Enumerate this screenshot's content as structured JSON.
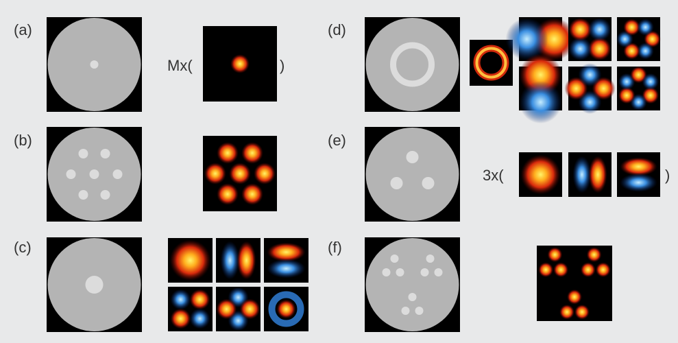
{
  "panels": [
    {
      "label": "(a)",
      "prefix": "Mx(",
      "suffix": ")"
    },
    {
      "label": "(b)"
    },
    {
      "label": "(c)"
    },
    {
      "label": "(d)"
    },
    {
      "label": "(e)",
      "prefix": "3x(",
      "suffix": ")"
    },
    {
      "label": "(f)"
    }
  ]
}
